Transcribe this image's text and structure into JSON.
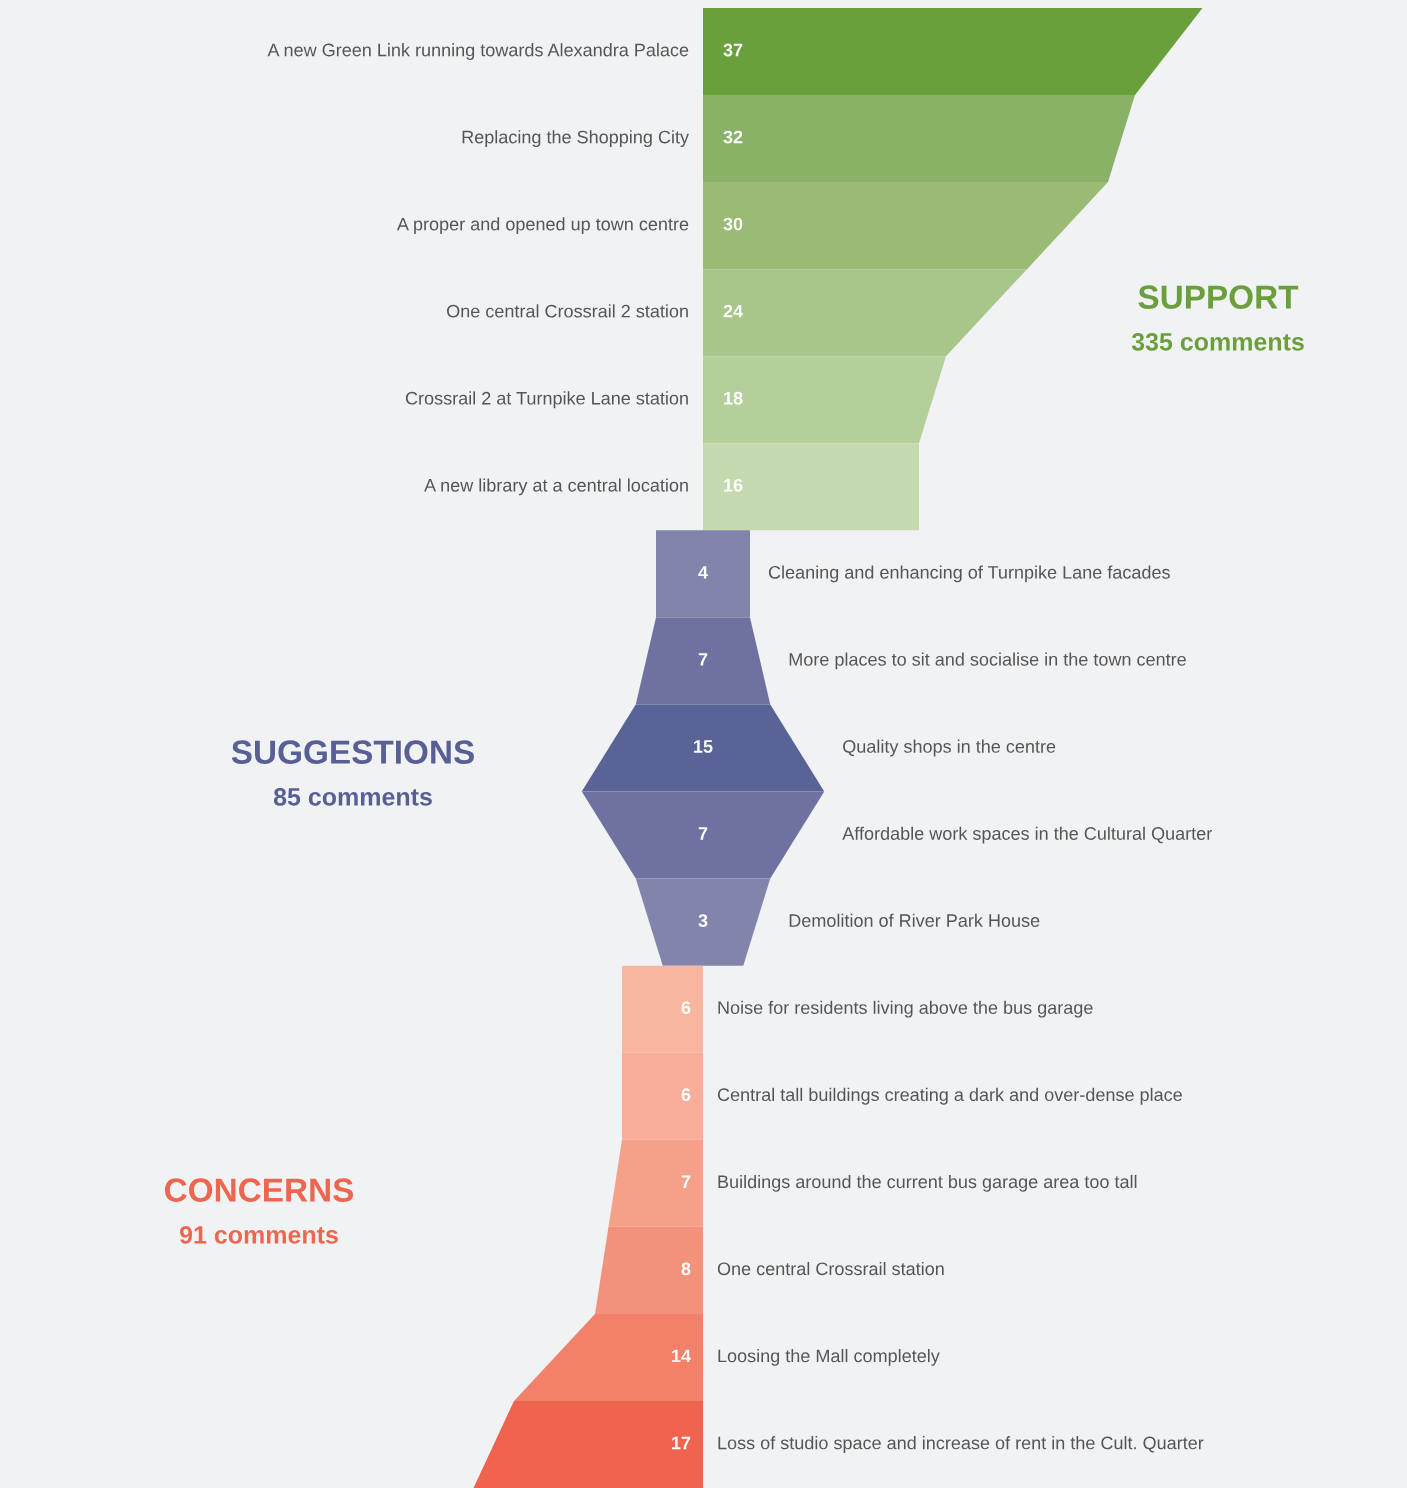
{
  "chart_data": {
    "type": "other",
    "data_labels": true,
    "categories": [
      "A new Green Link running towards Alexandra Palace",
      "Replacing the Shopping City",
      "A proper and opened up town centre",
      "One central Crossrail 2 station",
      "Crossrail 2 at Turnpike Lane station",
      "A new library at a central location",
      "Cleaning and enhancing of Turnpike Lane facades",
      "More places to sit and socialise in the town centre",
      "Quality shops in the centre",
      "Affordable work spaces in the Cultural Quarter",
      "Demolition of River Park House",
      "Noise for residents living above the bus garage",
      "Central tall buildings creating a dark and over-dense place",
      "Buildings around the current bus garage area too tall",
      "One central Crossrail station",
      "Loosing the Mall completely",
      "Loss of studio space and increase of rent in the Cult. Quarter"
    ],
    "series": [
      {
        "name": "SUPPORT",
        "color": "#6a9f3c",
        "values": [
          37,
          32,
          30,
          24,
          18,
          16,
          null,
          null,
          null,
          null,
          null,
          null,
          null,
          null,
          null,
          null,
          null
        ],
        "colors": [
          "#6aa03b",
          "#8ab266",
          "#9aba75",
          "#a8c68a",
          "#b5cf9b",
          "#c6dab0",
          null,
          null,
          null,
          null,
          null,
          null,
          null,
          null,
          null,
          null,
          null
        ]
      },
      {
        "name": "SUGGESTIONS",
        "color": "#575f95",
        "values": [
          null,
          null,
          null,
          null,
          null,
          null,
          4,
          7,
          15,
          7,
          3,
          null,
          null,
          null,
          null,
          null,
          null
        ],
        "colors": [
          null,
          null,
          null,
          null,
          null,
          null,
          "#8384ab",
          "#6f72a0",
          "#596395",
          "#6f72a0",
          "#8384ab",
          null,
          null,
          null,
          null,
          null,
          null
        ]
      },
      {
        "name": "CONCERNS",
        "color": "#ef6650",
        "values": [
          null,
          null,
          null,
          null,
          null,
          null,
          null,
          null,
          null,
          null,
          null,
          6,
          6,
          7,
          8,
          14,
          17
        ],
        "colors": [
          null,
          null,
          null,
          null,
          null,
          null,
          null,
          null,
          null,
          null,
          null,
          "#f8b6a1",
          "#f8ae99",
          "#f5a189",
          "#f3927a",
          "#f38068",
          "#f0634f"
        ]
      }
    ],
    "annotations": [
      "335 comments",
      "85 comments",
      "91 comments"
    ]
  }
}
